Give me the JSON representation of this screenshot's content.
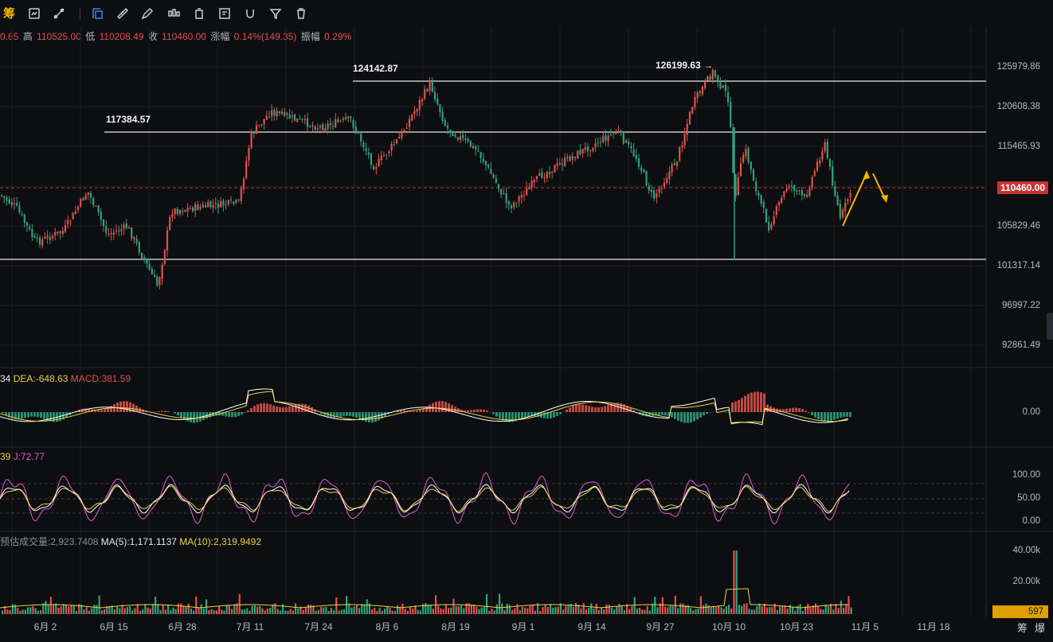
{
  "toolbar": {
    "logo": "筹",
    "icons": [
      "sync-chart-icon",
      "link-icon",
      "line-draw-icon",
      "select-shape-icon",
      "ruler-icon",
      "pen-icon",
      "candles-icon",
      "box-icon",
      "note-icon",
      "magnet-icon",
      "filter-icon",
      "trash-icon"
    ]
  },
  "info": {
    "open_partial": "0.65",
    "high_label": "高",
    "high": "110525.00",
    "low_label": "低",
    "low": "110208.49",
    "close_label": "收",
    "close": "110460.00",
    "change_label": "涨幅",
    "change": "0.14%(149.35)",
    "amp_label": "振幅",
    "amp": "0.29%"
  },
  "annotations": {
    "level_1": "124142.87",
    "level_2": "117384.57",
    "peak": "126199.63",
    "peak_arrow": "→"
  },
  "price_axis": [
    "125979.86",
    "120608.38",
    "115465.93",
    "105829.46",
    "101317.14",
    "96997.22",
    "92861.49"
  ],
  "current_price": "110460.00",
  "macd": {
    "legend_prefix": "34",
    "dea_label": "DEA:",
    "dea": "-648.63",
    "macd_label": "MACD:",
    "macd": "381.59",
    "axis": "0.00"
  },
  "kdj": {
    "legend_prefix": "39",
    "j_label": "J:",
    "j": "72.77",
    "axis": [
      "100.00",
      "50.00",
      "0.00"
    ]
  },
  "volume": {
    "est_label": "预估成交量:",
    "est": "2,923.7408",
    "ma5_label": "MA(5):",
    "ma5": "1,171.1137",
    "ma10_label": "MA(10):",
    "ma10": "2,319.9492",
    "axis": [
      "40.00k",
      "20.00k"
    ],
    "current": "597"
  },
  "dates": [
    "6月 2",
    "6月 15",
    "6月 28",
    "7月 11",
    "7月 24",
    "8月 6",
    "8月 19",
    "9月 1",
    "9月 14",
    "9月 27",
    "10月 10",
    "10月 23",
    "11月 5",
    "11月 18"
  ],
  "corner": {
    "chip": "筹",
    "burst": "爆"
  },
  "colors": {
    "up": "#e0524d",
    "down": "#2ea37a",
    "accent": "#f2b600"
  }
}
